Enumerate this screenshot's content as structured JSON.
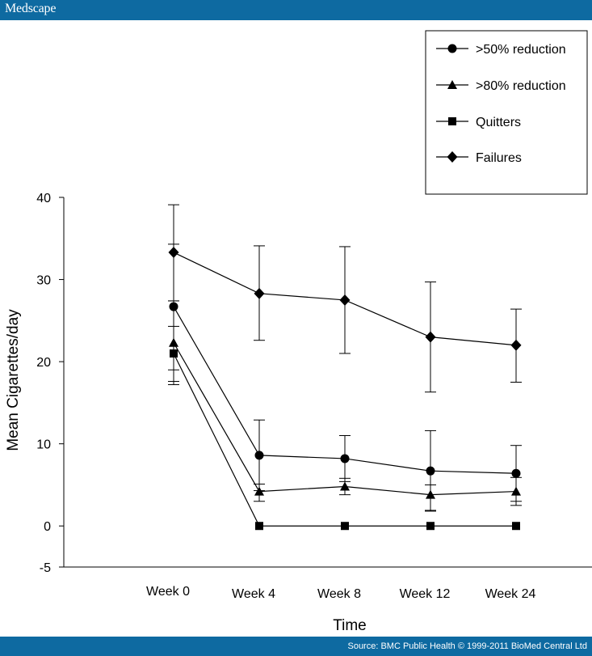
{
  "header": {
    "brand": "Medscape"
  },
  "footer": {
    "source": "Source: BMC Public Health © 1999-2011 BioMed Central Ltd"
  },
  "colors": {
    "bar": "#0e6aa1",
    "ink": "#000000"
  },
  "chart_data": {
    "type": "line",
    "title": "",
    "xlabel": "Time",
    "ylabel": "Mean Cigarettes/day",
    "categories": [
      "Week 0",
      "Week 4",
      "Week 8",
      "Week 12",
      "Week 24"
    ],
    "ylim": [
      -5,
      40
    ],
    "yticks": [
      40,
      30,
      20,
      10,
      0,
      -5
    ],
    "legend_position": "top-right",
    "series": [
      {
        "name": ">50% reduction",
        "marker": "circle",
        "values": [
          26.7,
          8.6,
          8.2,
          6.7,
          6.4
        ],
        "errors": [
          [
            19.0,
            34.3
          ],
          [
            4.3,
            12.9
          ],
          [
            5.4,
            11.0
          ],
          [
            1.8,
            11.6
          ],
          [
            3.0,
            9.8
          ]
        ]
      },
      {
        "name": ">80% reduction",
        "marker": "triangle",
        "values": [
          22.3,
          4.2,
          4.8,
          3.8,
          4.2
        ],
        "errors": [
          [
            17.2,
            27.4
          ],
          [
            3.0,
            5.1
          ],
          [
            3.8,
            5.8
          ],
          [
            1.9,
            5.0
          ],
          [
            2.5,
            5.9
          ]
        ]
      },
      {
        "name": "Quitters",
        "marker": "square",
        "values": [
          21.0,
          0,
          0,
          0,
          0
        ],
        "errors": [
          [
            17.6,
            24.3
          ],
          null,
          null,
          null,
          null
        ]
      },
      {
        "name": "Failures",
        "marker": "diamond",
        "values": [
          33.3,
          28.3,
          27.5,
          23.0,
          22.0
        ],
        "errors": [
          [
            27.4,
            39.1
          ],
          [
            22.6,
            34.1
          ],
          [
            21.0,
            34.0
          ],
          [
            16.3,
            29.7
          ],
          [
            17.5,
            26.4
          ]
        ]
      }
    ]
  }
}
